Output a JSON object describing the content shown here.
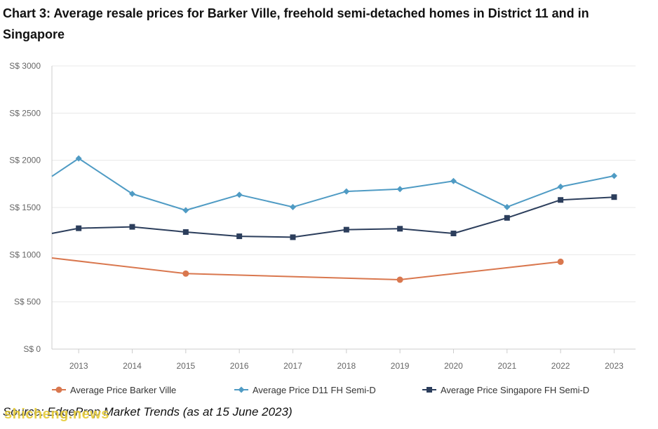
{
  "title": "Chart 3: Average resale prices for Barker Ville, freehold semi-detached homes in District 11 and in Singapore",
  "source": "Source: EdgeProp Market Trends (as at 15 June 2023)",
  "watermark": "shicheng.news",
  "chart_data": {
    "type": "line",
    "title": "Chart 3: Average resale prices for Barker Ville, freehold semi-detached homes in District 11 and in Singapore",
    "xlabel": "",
    "ylabel": "",
    "x": [
      2012.5,
      2013,
      2014,
      2015,
      2016,
      2017,
      2018,
      2019,
      2020,
      2021,
      2022,
      2023
    ],
    "xticks": [
      "2013",
      "2014",
      "2015",
      "2016",
      "2017",
      "2018",
      "2019",
      "2020",
      "2021",
      "2022",
      "2023"
    ],
    "xlim": [
      2012.5,
      2023.4
    ],
    "ylim": [
      0,
      3000
    ],
    "yticks": [
      0,
      500,
      1000,
      1500,
      2000,
      2500,
      3000
    ],
    "ytick_labels": [
      "S$ 0",
      "S$ 500",
      "S$ 1000",
      "S$ 1500",
      "S$ 2000",
      "S$ 2500",
      "S$ 3000"
    ],
    "grid": true,
    "legend_position": "bottom",
    "series": [
      {
        "name": "Average Price Barker Ville",
        "color": "#d9774e",
        "marker": "circle",
        "points": [
          [
            2012.5,
            965
          ],
          [
            2015,
            800
          ],
          [
            2019,
            735
          ],
          [
            2022,
            925
          ]
        ]
      },
      {
        "name": "Average Price D11 FH Semi-D",
        "color": "#4f9bc4",
        "marker": "diamond",
        "points": [
          [
            2012.5,
            1830
          ],
          [
            2013,
            2020
          ],
          [
            2014,
            1645
          ],
          [
            2015,
            1470
          ],
          [
            2016,
            1635
          ],
          [
            2017,
            1505
          ],
          [
            2018,
            1670
          ],
          [
            2019,
            1695
          ],
          [
            2020,
            1780
          ],
          [
            2021,
            1505
          ],
          [
            2022,
            1720
          ],
          [
            2023,
            1835
          ]
        ]
      },
      {
        "name": "Average Price Singapore FH Semi-D",
        "color": "#2c3e5c",
        "marker": "square",
        "points": [
          [
            2012.5,
            1225
          ],
          [
            2013,
            1280
          ],
          [
            2014,
            1295
          ],
          [
            2015,
            1240
          ],
          [
            2016,
            1195
          ],
          [
            2017,
            1185
          ],
          [
            2018,
            1265
          ],
          [
            2019,
            1275
          ],
          [
            2020,
            1225
          ],
          [
            2021,
            1390
          ],
          [
            2022,
            1580
          ],
          [
            2023,
            1610
          ]
        ]
      }
    ]
  }
}
